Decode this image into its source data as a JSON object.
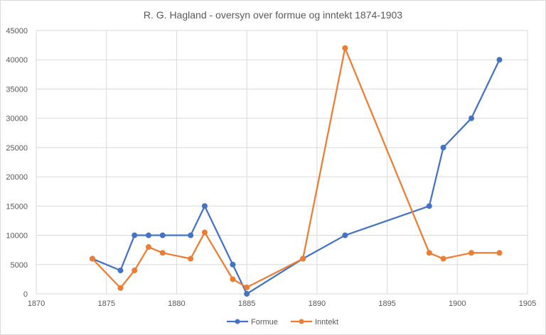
{
  "chart_data": {
    "type": "line",
    "title": "R. G. Hagland - oversyn over formue og inntekt 1874-1903",
    "xlabel": "",
    "ylabel": "",
    "xlim": [
      1870,
      1905
    ],
    "ylim": [
      0,
      45000
    ],
    "xticks": [
      1870,
      1875,
      1880,
      1885,
      1890,
      1895,
      1900,
      1905
    ],
    "yticks": [
      0,
      5000,
      10000,
      15000,
      20000,
      25000,
      30000,
      35000,
      40000,
      45000
    ],
    "grid": true,
    "legend_position": "bottom",
    "series": [
      {
        "name": "Formue",
        "color": "#4472C4",
        "points": [
          [
            1874,
            6000
          ],
          [
            1876,
            4000
          ],
          [
            1877,
            10000
          ],
          [
            1878,
            10000
          ],
          [
            1879,
            10000
          ],
          [
            1881,
            10000
          ],
          [
            1882,
            15000
          ],
          [
            1884,
            5000
          ],
          [
            1885,
            0
          ],
          [
            1889,
            6000
          ],
          [
            1892,
            10000
          ],
          [
            1898,
            15000
          ],
          [
            1899,
            25000
          ],
          [
            1901,
            30000
          ],
          [
            1903,
            40000
          ]
        ]
      },
      {
        "name": "Inntekt",
        "color": "#ED7D31",
        "points": [
          [
            1874,
            6000
          ],
          [
            1876,
            1000
          ],
          [
            1877,
            4000
          ],
          [
            1878,
            8000
          ],
          [
            1879,
            7000
          ],
          [
            1881,
            6000
          ],
          [
            1882,
            10500
          ],
          [
            1884,
            2500
          ],
          [
            1885,
            1100
          ],
          [
            1889,
            6000
          ],
          [
            1892,
            42000
          ],
          [
            1898,
            7000
          ],
          [
            1899,
            6000
          ],
          [
            1901,
            7000
          ],
          [
            1903,
            7000
          ]
        ]
      }
    ]
  }
}
